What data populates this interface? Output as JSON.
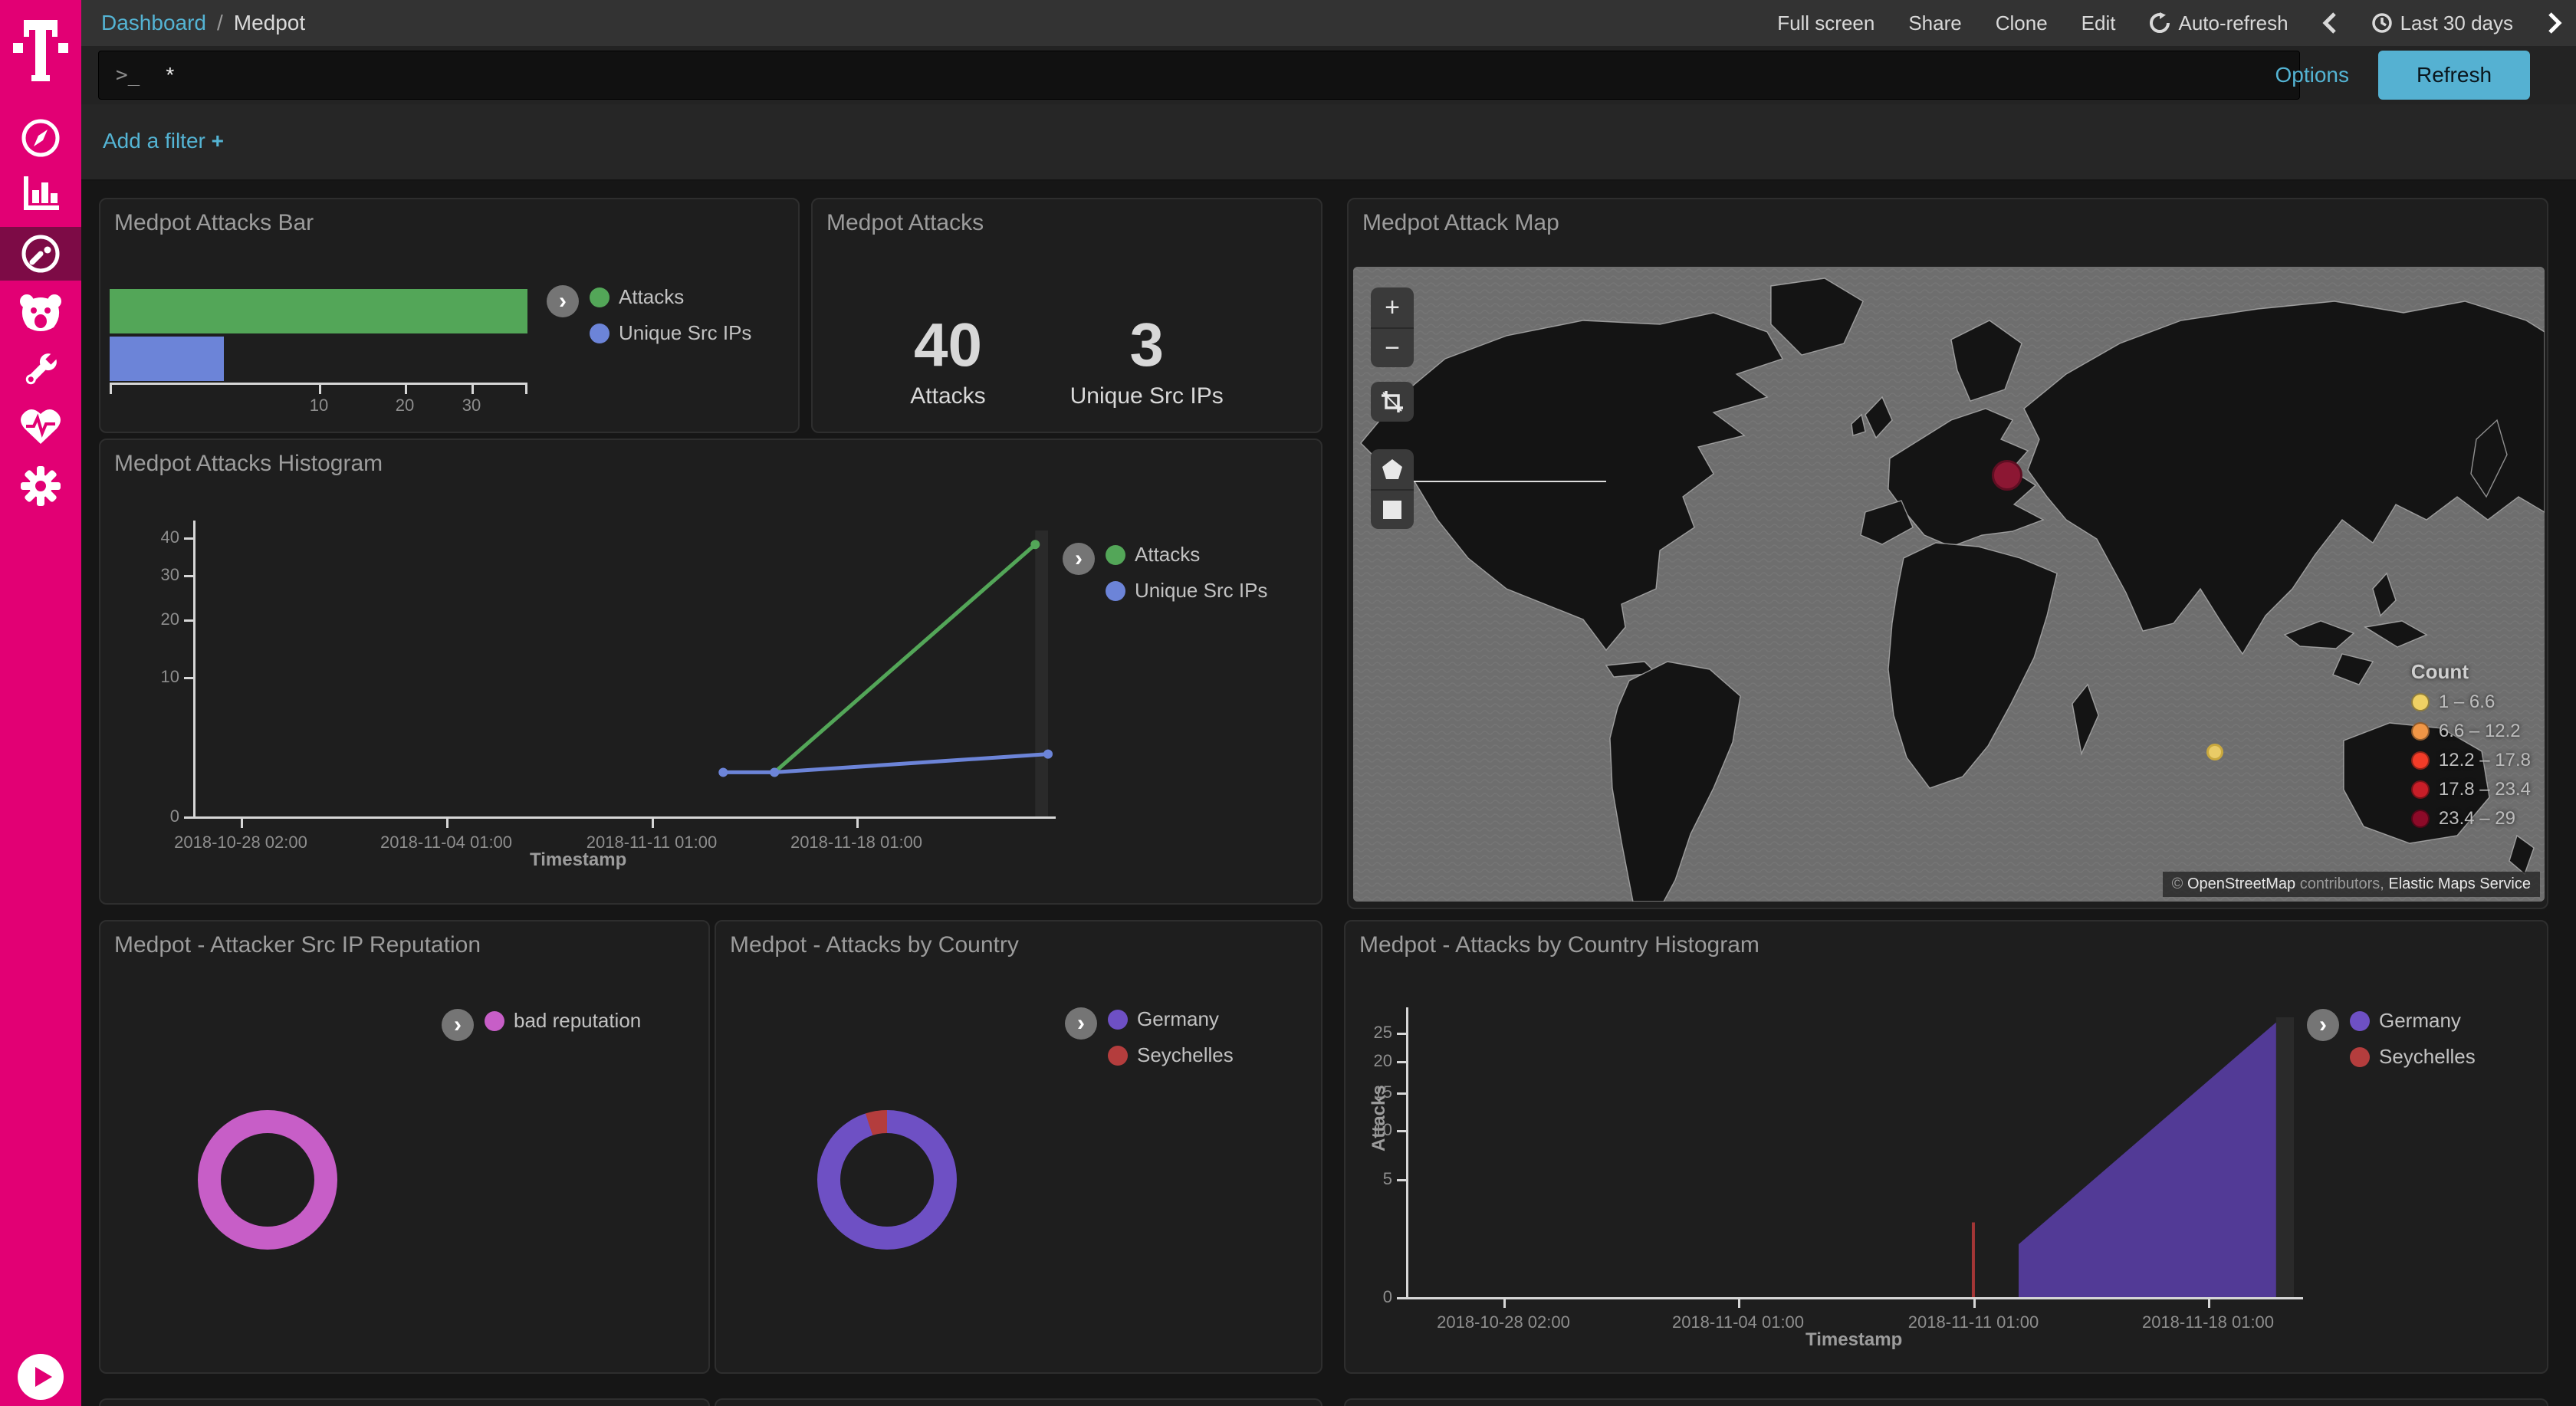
{
  "topbar": {
    "breadcrumb": {
      "link": "Dashboard",
      "separator": "/",
      "current": "Medpot"
    },
    "actions": [
      "Full screen",
      "Share",
      "Clone",
      "Edit"
    ],
    "auto_refresh": "Auto-refresh",
    "time_range": "Last 30 days"
  },
  "querybar": {
    "prompt": ">_",
    "query": "*",
    "options_label": "Options",
    "refresh_label": "Refresh"
  },
  "filterbar": {
    "add_filter_label": "Add a filter",
    "plus": "+"
  },
  "sidebar": {
    "brand": "telekom-t-logo",
    "items": [
      "discover",
      "visualize",
      "dashboard",
      "honeypot",
      "dev-tools",
      "monitoring",
      "management"
    ],
    "active_item": "dashboard",
    "accent": "#E20074",
    "active_bg": "#7D0B46"
  },
  "panels": {
    "bar": {
      "title": "Medpot Attacks Bar",
      "legend": [
        {
          "label": "Attacks",
          "color": "#53A658"
        },
        {
          "label": "Unique Src IPs",
          "color": "#6C84D8"
        }
      ]
    },
    "metric": {
      "title": "Medpot Attacks"
    },
    "map": {
      "title": "Medpot Attack Map",
      "controls": [
        "zoom-in",
        "zoom-out",
        "crop",
        "draw-polygon",
        "draw-rectangle"
      ],
      "attribution": {
        "copyright": "©",
        "osm": "OpenStreetMap",
        "middle": "contributors,",
        "ems": "Elastic Maps Service"
      }
    },
    "histogram": {
      "title": "Medpot Attacks Histogram",
      "xlabel": "Timestamp",
      "legend": [
        {
          "label": "Attacks",
          "color": "#53A658"
        },
        {
          "label": "Unique Src IPs",
          "color": "#6C84D8"
        }
      ]
    },
    "reputation": {
      "title": "Medpot - Attacker Src IP Reputation",
      "legend": [
        {
          "label": "bad reputation",
          "color": "#C75EC7"
        }
      ]
    },
    "country": {
      "title": "Medpot - Attacks by Country",
      "legend": [
        {
          "label": "Germany",
          "color": "#6E50C4"
        },
        {
          "label": "Seychelles",
          "color": "#B43D3D"
        }
      ]
    },
    "country_hist": {
      "title": "Medpot - Attacks by Country Histogram",
      "xlabel": "Timestamp",
      "ylabel": "Attacks",
      "legend": [
        {
          "label": "Germany",
          "color": "#6E50C4"
        },
        {
          "label": "Seychelles",
          "color": "#B43D3D"
        }
      ]
    }
  },
  "chart_data": [
    {
      "id": "attacks_bar",
      "type": "bar",
      "orientation": "horizontal",
      "scale": "square root",
      "categories": [
        "Attacks",
        "Unique Src IPs"
      ],
      "values": [
        40,
        3
      ],
      "colors": [
        "#53A658",
        "#6C84D8"
      ],
      "x_ticks": [
        10,
        20,
        30
      ],
      "xmax": 40
    },
    {
      "id": "attacks_metric",
      "type": "metric",
      "items": [
        {
          "label": "Attacks",
          "value": "40"
        },
        {
          "label": "Unique Src IPs",
          "value": "3"
        }
      ]
    },
    {
      "id": "attack_map",
      "type": "map",
      "legend_title": "Count",
      "legend_items": [
        {
          "range": "1 – 6.6",
          "color": "#EFD164"
        },
        {
          "range": "6.6 – 12.2",
          "color": "#F09646"
        },
        {
          "range": "12.2 – 17.8",
          "color": "#F23C28"
        },
        {
          "range": "17.8 – 23.4",
          "color": "#C81E28"
        },
        {
          "range": "23.4 – 29",
          "color": "#8C0A28"
        }
      ],
      "markers": [
        {
          "location": "Germany",
          "bucket": "23.4 – 29",
          "color": "#8C1733",
          "border": "#5E0E22",
          "xf": 0.549,
          "yf": 0.329,
          "r": 20
        },
        {
          "location": "Seychelles",
          "bucket": "1 – 6.6",
          "color": "#E9CB67",
          "border": "#C9A83E",
          "xf": 0.723,
          "yf": 0.765,
          "r": 11
        }
      ]
    },
    {
      "id": "attacks_histogram",
      "type": "line",
      "title": "Medpot Attacks Histogram",
      "xlabel": "Timestamp",
      "scale": "square root",
      "ymax": 42,
      "y_ticks": [
        0,
        10,
        20,
        30,
        40
      ],
      "x_ticks": [
        {
          "label": "2018-10-28 02:00",
          "xf": 0.056
        },
        {
          "label": "2018-11-04 01:00",
          "xf": 0.296
        },
        {
          "label": "2018-11-11 01:00",
          "xf": 0.536
        },
        {
          "label": "2018-11-18 01:00",
          "xf": 0.776
        }
      ],
      "series": [
        {
          "name": "Attacks",
          "color": "#53A658",
          "points": [
            {
              "x": "2018-11-15 01:00",
              "xf": 0.68,
              "v": 1
            },
            {
              "x": "2018-11-24 01:00",
              "xf": 0.985,
              "v": 38
            }
          ]
        },
        {
          "name": "Unique Src IPs",
          "color": "#6C84D8",
          "points": [
            {
              "x": "2018-11-13 01:00",
              "xf": 0.62,
              "v": 1
            },
            {
              "x": "2018-11-15 01:00",
              "xf": 0.68,
              "v": 1
            },
            {
              "x": "2018-11-24 01:00",
              "xf": 1.0,
              "v": 2
            }
          ]
        }
      ],
      "endzone": {
        "x0": 0.985,
        "x1": 1.0
      }
    },
    {
      "id": "reputation_pie",
      "type": "pie",
      "donut": true,
      "slices": [
        {
          "label": "bad reputation",
          "value": 40,
          "color": "#C75EC7"
        }
      ]
    },
    {
      "id": "country_pie",
      "type": "pie",
      "donut": true,
      "slices": [
        {
          "label": "Germany",
          "value": 38,
          "color": "#6E50C4"
        },
        {
          "label": "Seychelles",
          "value": 2,
          "color": "#B43D3D"
        }
      ]
    },
    {
      "id": "country_histogram",
      "type": "area",
      "title": "Medpot - Attacks by Country Histogram",
      "xlabel": "Timestamp",
      "ylabel": "Attacks",
      "scale": "square root",
      "ymax": 28,
      "y_ticks": [
        0,
        5,
        10,
        15,
        20,
        25
      ],
      "x_ticks": [
        {
          "label": "2018-10-28 02:00",
          "xf": 0.11
        },
        {
          "label": "2018-11-04 01:00",
          "xf": 0.374
        },
        {
          "label": "2018-11-11 01:00",
          "xf": 0.639
        },
        {
          "label": "2018-11-18 01:00",
          "xf": 0.903
        }
      ],
      "series": [
        {
          "name": "Germany",
          "color": "#523A96",
          "points": [
            {
              "x": "2018-11-12 01:00",
              "xf": 0.69,
              "v": 1
            },
            {
              "x": "2018-11-20 01:00",
              "xf": 0.98,
              "v": 27
            }
          ]
        },
        {
          "name": "Seychelles",
          "color": "#A33636",
          "spike": {
            "x": "2018-11-11 01:00",
            "xf": 0.639,
            "v": 2
          }
        }
      ],
      "endzone": {
        "x0": 0.98,
        "x1": 1.0
      }
    }
  ]
}
